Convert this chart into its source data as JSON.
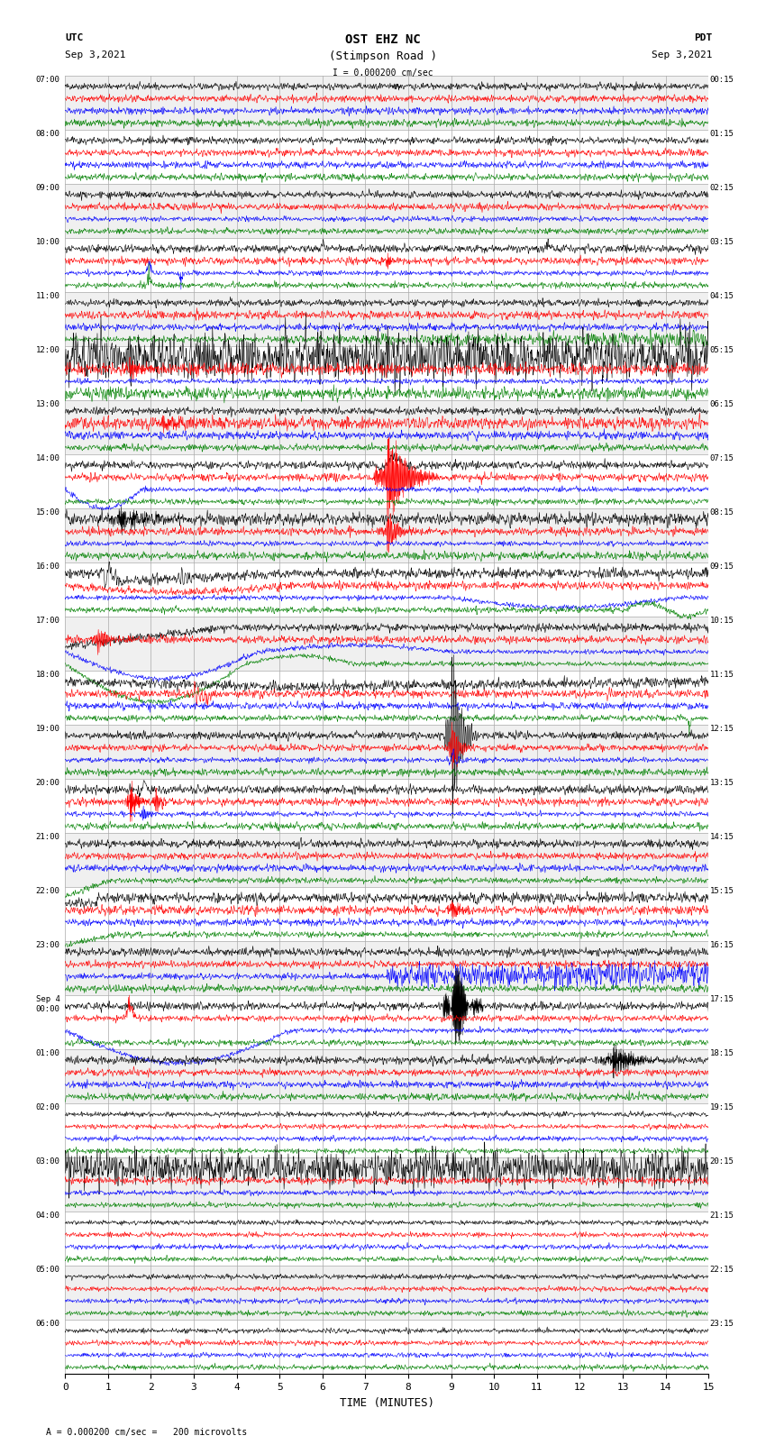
{
  "title_line1": "OST EHZ NC",
  "title_line2": "(Stimpson Road )",
  "scale_label": "I = 0.000200 cm/sec",
  "utc_label": "UTC",
  "utc_date": "Sep 3,2021",
  "pdt_label": "PDT",
  "pdt_date": "Sep 3,2021",
  "bottom_label": "A = 0.000200 cm/sec =   200 microvolts",
  "xlabel": "TIME (MINUTES)",
  "left_times": [
    "07:00",
    "08:00",
    "09:00",
    "10:00",
    "11:00",
    "12:00",
    "13:00",
    "14:00",
    "15:00",
    "16:00",
    "17:00",
    "18:00",
    "19:00",
    "20:00",
    "21:00",
    "22:00",
    "23:00",
    "Sep 4\n00:00",
    "01:00",
    "02:00",
    "03:00",
    "04:00",
    "05:00",
    "06:00"
  ],
  "right_times": [
    "00:15",
    "01:15",
    "02:15",
    "03:15",
    "04:15",
    "05:15",
    "06:15",
    "07:15",
    "08:15",
    "09:15",
    "10:15",
    "11:15",
    "12:15",
    "13:15",
    "14:15",
    "15:15",
    "16:15",
    "17:15",
    "18:15",
    "19:15",
    "20:15",
    "21:15",
    "22:15",
    "23:15"
  ],
  "n_rows": 24,
  "n_traces_per_row": 4,
  "trace_colors": [
    "black",
    "red",
    "blue",
    "green"
  ],
  "background_color": "white",
  "row_bg_colors": [
    "#f0f0f0",
    "white"
  ],
  "grid_color": "#aaaaaa",
  "x_min": 0,
  "x_max": 15,
  "x_ticks": [
    0,
    1,
    2,
    3,
    4,
    5,
    6,
    7,
    8,
    9,
    10,
    11,
    12,
    13,
    14,
    15
  ],
  "fig_width": 8.5,
  "fig_height": 16.13,
  "dpi": 100
}
